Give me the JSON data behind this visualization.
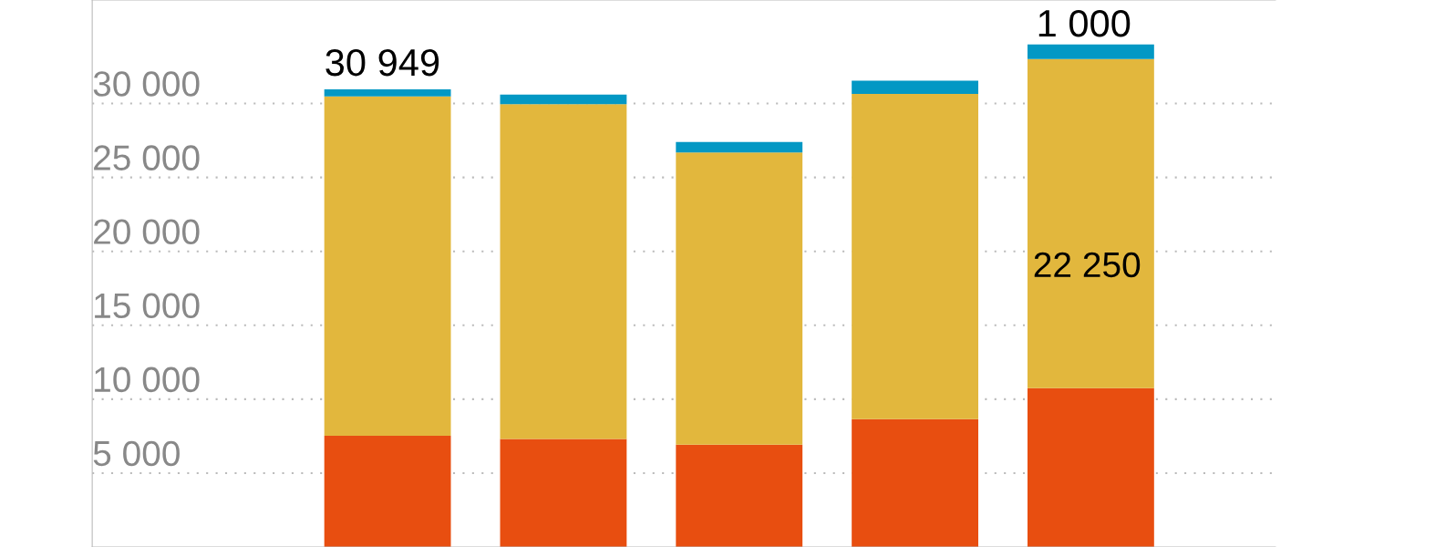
{
  "chart_data": {
    "type": "bar",
    "stacked": true,
    "categories": [
      null,
      null,
      null,
      null,
      null
    ],
    "series": [
      {
        "color": "#e84e10",
        "values": [
          7530,
          7300,
          6920,
          8650,
          10750
        ]
      },
      {
        "color": "#e2b73d",
        "values": [
          22950,
          22650,
          19770,
          22000,
          22250
        ],
        "value_labels": [
          null,
          null,
          null,
          null,
          "22 250"
        ]
      },
      {
        "color": "#0398c4",
        "values": [
          470,
          650,
          700,
          890,
          1000
        ],
        "value_labels": [
          null,
          null,
          null,
          null,
          "1 000"
        ]
      }
    ],
    "totals": [
      "30 949",
      null,
      null,
      null,
      null
    ],
    "ylim": [
      0,
      37000
    ],
    "yticks": [
      {
        "value": 5000,
        "label": "5 000"
      },
      {
        "value": 10000,
        "label": "10 000"
      },
      {
        "value": 15000,
        "label": "15 000"
      },
      {
        "value": 20000,
        "label": "20 000"
      },
      {
        "value": 25000,
        "label": "25 000"
      },
      {
        "value": 30000,
        "label": "30 000"
      }
    ],
    "grid": "y"
  }
}
